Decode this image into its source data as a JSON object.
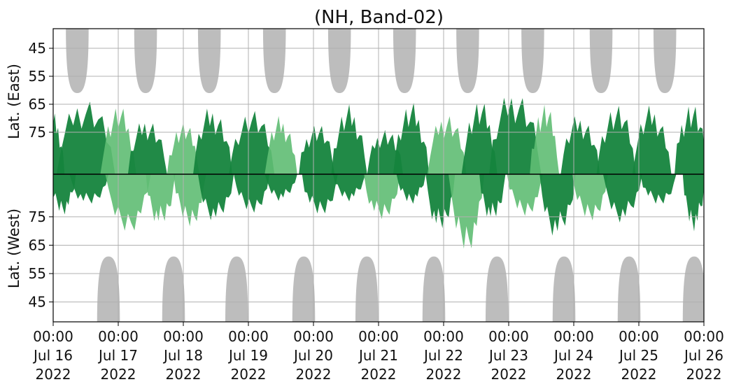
{
  "chart_data": {
    "type": "heatmap",
    "title": "(NH, Band-02)",
    "x_axis": {
      "range": [
        "2022-07-16 00:00",
        "2022-07-26 00:00"
      ],
      "tick_labels": [
        {
          "time": "00:00",
          "date": "Jul 16",
          "year": "2022"
        },
        {
          "time": "00:00",
          "date": "Jul 17",
          "year": "2022"
        },
        {
          "time": "00:00",
          "date": "Jul 18",
          "year": "2022"
        },
        {
          "time": "00:00",
          "date": "Jul 19",
          "year": "2022"
        },
        {
          "time": "00:00",
          "date": "Jul 20",
          "year": "2022"
        },
        {
          "time": "00:00",
          "date": "Jul 21",
          "year": "2022"
        },
        {
          "time": "00:00",
          "date": "Jul 22",
          "year": "2022"
        },
        {
          "time": "00:00",
          "date": "Jul 23",
          "year": "2022"
        },
        {
          "time": "00:00",
          "date": "Jul 24",
          "year": "2022"
        },
        {
          "time": "00:00",
          "date": "Jul 25",
          "year": "2022"
        },
        {
          "time": "00:00",
          "date": "Jul 26",
          "year": "2022"
        }
      ]
    },
    "y_axes": {
      "east": {
        "label": "Lat. (East)",
        "ticks": [
          "45",
          "55",
          "65",
          "75"
        ],
        "range": [
          38,
          90
        ]
      },
      "west": {
        "label": "Lat. (West)",
        "ticks": [
          "75",
          "65",
          "55",
          "45"
        ],
        "range": [
          90,
          38
        ]
      }
    },
    "grid": true,
    "divider_latitude": 90,
    "colors": {
      "dark_green": "#15843d",
      "light_green": "#5fbd73",
      "gray": "#bdbdbd",
      "divider": "#000000",
      "grid": "#b0b0b0"
    },
    "gray_regions": {
      "east": [
        {
          "day_center": 0.37,
          "width_days": 0.35,
          "min_lat": 61
        },
        {
          "day_center": 1.42,
          "width_days": 0.35,
          "min_lat": 61
        },
        {
          "day_center": 2.4,
          "width_days": 0.35,
          "min_lat": 61
        },
        {
          "day_center": 3.4,
          "width_days": 0.35,
          "min_lat": 61
        },
        {
          "day_center": 4.4,
          "width_days": 0.35,
          "min_lat": 61
        },
        {
          "day_center": 5.4,
          "width_days": 0.35,
          "min_lat": 61
        },
        {
          "day_center": 6.37,
          "width_days": 0.35,
          "min_lat": 61
        },
        {
          "day_center": 7.37,
          "width_days": 0.35,
          "min_lat": 61
        },
        {
          "day_center": 8.42,
          "width_days": 0.35,
          "min_lat": 61
        },
        {
          "day_center": 9.4,
          "width_days": 0.35,
          "min_lat": 61
        }
      ],
      "west": [
        {
          "day_center": 0.85,
          "width_days": 0.35,
          "min_lat": 61
        },
        {
          "day_center": 1.85,
          "width_days": 0.35,
          "min_lat": 61
        },
        {
          "day_center": 2.82,
          "width_days": 0.35,
          "min_lat": 61
        },
        {
          "day_center": 3.85,
          "width_days": 0.35,
          "min_lat": 61
        },
        {
          "day_center": 4.82,
          "width_days": 0.35,
          "min_lat": 61
        },
        {
          "day_center": 5.85,
          "width_days": 0.35,
          "min_lat": 61
        },
        {
          "day_center": 6.82,
          "width_days": 0.35,
          "min_lat": 61
        },
        {
          "day_center": 7.85,
          "width_days": 0.35,
          "min_lat": 61
        },
        {
          "day_center": 8.85,
          "width_days": 0.35,
          "min_lat": 61
        },
        {
          "day_center": 9.85,
          "width_days": 0.35,
          "min_lat": 61
        }
      ]
    },
    "green_regions": {
      "east": [
        {
          "day_center": 0.0,
          "width_days": 0.35,
          "min_lat": 67,
          "shade": "dark"
        },
        {
          "day_center": 0.5,
          "width_days": 0.9,
          "min_lat": 60,
          "shade": "dark"
        },
        {
          "day_center": 1.0,
          "width_days": 0.55,
          "min_lat": 64,
          "shade": "light"
        },
        {
          "day_center": 1.45,
          "width_days": 0.6,
          "min_lat": 68,
          "shade": "dark"
        },
        {
          "day_center": 2.0,
          "width_days": 0.5,
          "min_lat": 70,
          "shade": "light"
        },
        {
          "day_center": 2.45,
          "width_days": 0.6,
          "min_lat": 64,
          "shade": "dark"
        },
        {
          "day_center": 3.05,
          "width_days": 0.7,
          "min_lat": 65,
          "shade": "dark"
        },
        {
          "day_center": 3.5,
          "width_days": 0.5,
          "min_lat": 68,
          "shade": "light"
        },
        {
          "day_center": 4.05,
          "width_days": 0.55,
          "min_lat": 70,
          "shade": "dark"
        },
        {
          "day_center": 4.55,
          "width_days": 0.55,
          "min_lat": 64,
          "shade": "dark"
        },
        {
          "day_center": 5.1,
          "width_days": 0.55,
          "min_lat": 72,
          "shade": "dark"
        },
        {
          "day_center": 5.5,
          "width_days": 0.55,
          "min_lat": 63,
          "shade": "dark"
        },
        {
          "day_center": 6.05,
          "width_days": 0.6,
          "min_lat": 66,
          "shade": "light"
        },
        {
          "day_center": 6.55,
          "width_days": 0.55,
          "min_lat": 62,
          "shade": "dark"
        },
        {
          "day_center": 7.1,
          "width_days": 0.8,
          "min_lat": 57,
          "shade": "dark"
        },
        {
          "day_center": 7.55,
          "width_days": 0.45,
          "min_lat": 63,
          "shade": "light"
        },
        {
          "day_center": 8.1,
          "width_days": 0.6,
          "min_lat": 67,
          "shade": "dark"
        },
        {
          "day_center": 8.65,
          "width_days": 0.6,
          "min_lat": 63,
          "shade": "dark"
        },
        {
          "day_center": 9.2,
          "width_days": 0.6,
          "min_lat": 64,
          "shade": "dark"
        },
        {
          "day_center": 9.8,
          "width_days": 0.5,
          "min_lat": 62,
          "shade": "dark"
        }
      ],
      "west": [
        {
          "day_center": 0.15,
          "width_days": 0.4,
          "min_lat": 75,
          "shade": "dark"
        },
        {
          "day_center": 0.55,
          "width_days": 0.6,
          "min_lat": 78,
          "shade": "dark"
        },
        {
          "day_center": 1.15,
          "width_days": 0.7,
          "min_lat": 68,
          "shade": "light"
        },
        {
          "day_center": 1.65,
          "width_days": 0.45,
          "min_lat": 70,
          "shade": "light"
        },
        {
          "day_center": 2.1,
          "width_days": 0.5,
          "min_lat": 70,
          "shade": "light"
        },
        {
          "day_center": 2.5,
          "width_days": 0.55,
          "min_lat": 72,
          "shade": "dark"
        },
        {
          "day_center": 3.05,
          "width_days": 0.55,
          "min_lat": 75,
          "shade": "dark"
        },
        {
          "day_center": 3.5,
          "width_days": 0.5,
          "min_lat": 80,
          "shade": "dark"
        },
        {
          "day_center": 4.1,
          "width_days": 0.55,
          "min_lat": 74,
          "shade": "dark"
        },
        {
          "day_center": 4.55,
          "width_days": 0.5,
          "min_lat": 80,
          "shade": "dark"
        },
        {
          "day_center": 5.05,
          "width_days": 0.55,
          "min_lat": 72,
          "shade": "light"
        },
        {
          "day_center": 5.5,
          "width_days": 0.45,
          "min_lat": 79,
          "shade": "dark"
        },
        {
          "day_center": 5.95,
          "width_days": 0.45,
          "min_lat": 68,
          "shade": "dark"
        },
        {
          "day_center": 6.35,
          "width_days": 0.55,
          "min_lat": 61,
          "shade": "light"
        },
        {
          "day_center": 6.75,
          "width_days": 0.4,
          "min_lat": 72,
          "shade": "dark"
        },
        {
          "day_center": 7.25,
          "width_days": 0.55,
          "min_lat": 74,
          "shade": "light"
        },
        {
          "day_center": 7.75,
          "width_days": 0.55,
          "min_lat": 66,
          "shade": "dark"
        },
        {
          "day_center": 8.25,
          "width_days": 0.55,
          "min_lat": 72,
          "shade": "light"
        },
        {
          "day_center": 8.75,
          "width_days": 0.6,
          "min_lat": 72,
          "shade": "dark"
        },
        {
          "day_center": 9.3,
          "width_days": 0.55,
          "min_lat": 78,
          "shade": "dark"
        },
        {
          "day_center": 9.85,
          "width_days": 0.35,
          "min_lat": 69,
          "shade": "dark"
        }
      ]
    }
  }
}
